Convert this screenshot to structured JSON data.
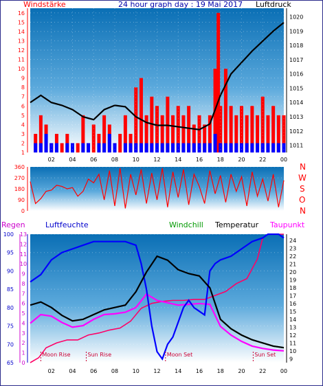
{
  "header": {
    "left_label": "Windstärke",
    "title": "24 hour graph day : 19 Mai 2017",
    "right_label": "Luftdruck"
  },
  "colors": {
    "background_top": "#0a6fb5",
    "background_bottom": "#ffffff",
    "wind_bar": "#ff0000",
    "gust_bar": "#0000ff",
    "pressure_line": "#000000",
    "direction_line": "#ff0000",
    "temperature_line": "#000000",
    "humidity_line": "#0000ff",
    "dewpoint_line": "#ff00ff",
    "rain_line": "#ff0066",
    "windchill_line": "#009900"
  },
  "bottom_legend": {
    "rain": "Regen",
    "humidity": "Luftfeuchte",
    "windchill": "Windchill",
    "temperature": "Temperatur",
    "dewpoint": "Taupunkt"
  },
  "direction_letters": [
    "N",
    "W",
    "S",
    "O",
    "N"
  ],
  "x_ticks": [
    "02",
    "04",
    "06",
    "08",
    "10",
    "12",
    "14",
    "16",
    "18",
    "20",
    "22",
    "00"
  ],
  "chart_data": [
    {
      "type": "bar",
      "name": "wind_and_pressure",
      "left_axis_ticks": [
        1,
        2,
        3,
        4,
        5,
        6,
        7,
        8,
        9,
        10,
        11,
        12,
        13,
        14,
        15,
        16
      ],
      "right_axis_ticks": [
        1011,
        1012,
        1013,
        1014,
        1015,
        1016,
        1017,
        1018,
        1019,
        1020
      ],
      "ylim_left": [
        1,
        16.5
      ],
      "ylim_right": [
        1010.5,
        1020.6
      ],
      "x_range": [
        0,
        24
      ],
      "series": [
        {
          "name": "Windstärke",
          "x": [
            0.5,
            1.0,
            1.5,
            2.0,
            2.5,
            3.0,
            3.5,
            4.0,
            4.5,
            5.0,
            5.5,
            6.0,
            6.5,
            7.0,
            7.5,
            8.0,
            8.5,
            9.0,
            9.5,
            10.0,
            10.5,
            11.0,
            11.5,
            12.0,
            12.5,
            13.0,
            13.5,
            14.0,
            14.5,
            15.0,
            15.5,
            16.0,
            16.5,
            17.0,
            17.5,
            17.8,
            18.0,
            18.5,
            19.0,
            19.5,
            20.0,
            20.5,
            21.0,
            21.5,
            22.0,
            22.5,
            23.0,
            23.5,
            24.0
          ],
          "values": [
            3,
            5,
            4,
            2,
            3,
            2,
            3,
            2,
            2,
            5,
            2,
            4,
            3,
            5,
            4,
            2,
            3,
            5,
            3,
            8,
            9,
            5,
            7,
            6,
            5,
            7,
            5,
            6,
            5,
            6,
            4,
            5,
            4,
            5,
            10,
            16,
            6,
            10,
            6,
            5,
            6,
            5,
            6,
            5,
            7,
            5,
            6,
            5,
            5
          ]
        },
        {
          "name": "Böen",
          "x": [
            0.5,
            1.0,
            1.5,
            2.0,
            2.5,
            3.0,
            3.5,
            4.0,
            4.5,
            5.0,
            5.5,
            6.0,
            6.5,
            7.0,
            7.5,
            8.0,
            8.5,
            9.0,
            9.5,
            10.0,
            10.5,
            11.0,
            11.5,
            12.0,
            12.5,
            13.0,
            13.5,
            14.0,
            14.5,
            15.0,
            15.5,
            16.0,
            16.5,
            17.0,
            17.5,
            18.0,
            18.5,
            19.0,
            19.5,
            20.0,
            20.5,
            21.0,
            21.5,
            22.0,
            22.5,
            23.0,
            23.5,
            24.0
          ],
          "values": [
            2,
            2,
            3,
            2,
            2,
            1,
            2,
            2,
            1,
            2,
            2,
            1,
            2,
            2,
            3,
            2,
            1,
            2,
            2,
            2,
            2,
            2,
            2,
            2,
            2,
            2,
            2,
            2,
            2,
            2,
            2,
            2,
            2,
            2,
            3,
            2,
            2,
            2,
            2,
            2,
            2,
            2,
            2,
            2,
            2,
            2,
            2,
            2
          ]
        },
        {
          "name": "Luftdruck",
          "x": [
            0,
            1,
            2,
            3,
            4,
            5,
            6,
            7,
            8,
            9,
            10,
            11,
            12,
            13,
            14,
            15,
            16,
            17,
            18,
            19,
            20,
            21,
            22,
            23,
            24
          ],
          "values": [
            1014.0,
            1014.5,
            1014.0,
            1013.8,
            1013.5,
            1013.0,
            1012.8,
            1013.5,
            1013.8,
            1013.7,
            1013.0,
            1012.6,
            1012.4,
            1012.4,
            1012.3,
            1012.2,
            1012.1,
            1012.5,
            1014.5,
            1016.0,
            1016.8,
            1017.6,
            1018.3,
            1019.0,
            1019.6
          ]
        }
      ]
    },
    {
      "type": "line",
      "name": "wind_direction",
      "left_axis_ticks": [
        0,
        90,
        180,
        270,
        360
      ],
      "ylim": [
        0,
        360
      ],
      "x_range": [
        0,
        24
      ],
      "series": [
        {
          "name": "Windrichtung",
          "x": [
            0,
            0.5,
            1,
            1.5,
            2,
            2.5,
            3,
            3.5,
            4,
            4.5,
            5,
            5.5,
            6,
            6.5,
            7,
            7.5,
            8,
            8.5,
            9,
            9.5,
            10,
            10.5,
            11,
            11.5,
            12,
            12.5,
            13,
            13.5,
            14,
            14.5,
            15,
            15.5,
            16,
            16.5,
            17,
            17.5,
            18,
            18.5,
            19,
            19.5,
            20,
            20.5,
            21,
            21.5,
            22,
            22.5,
            23,
            23.5,
            24
          ],
          "values": [
            240,
            60,
            100,
            160,
            170,
            210,
            200,
            180,
            190,
            120,
            160,
            260,
            230,
            300,
            90,
            330,
            40,
            350,
            20,
            300,
            130,
            340,
            60,
            310,
            90,
            350,
            30,
            320,
            110,
            340,
            50,
            300,
            200,
            60,
            330,
            140,
            290,
            70,
            300,
            160,
            280,
            40,
            320,
            120,
            260,
            80,
            300,
            30,
            250
          ]
        }
      ]
    },
    {
      "type": "line",
      "name": "temperature_humidity_rain",
      "rain_axis_ticks": [
        0,
        1,
        2,
        3,
        4,
        5,
        6,
        7,
        8,
        9,
        10,
        11,
        12,
        13
      ],
      "humidity_axis_ticks": [
        65,
        70,
        75,
        80,
        85,
        90,
        95,
        100
      ],
      "temperature_axis_ticks": [
        9,
        10,
        11,
        12,
        13,
        14,
        15,
        16,
        17,
        18,
        19,
        20,
        21,
        22,
        23,
        24
      ],
      "ylim_rain": [
        0,
        13
      ],
      "ylim_humidity": [
        65,
        100
      ],
      "ylim_temperature": [
        8.5,
        24.8
      ],
      "x_range": [
        0,
        24
      ],
      "annotations": [
        {
          "text": "Moon Rise",
          "x": 1.0
        },
        {
          "text": "Sun Rise",
          "x": 5.3
        },
        {
          "text": "Moon Set",
          "x": 12.8
        },
        {
          "text": "Sun Set",
          "x": 21.1
        }
      ],
      "series": [
        {
          "name": "Temperatur",
          "x": [
            0,
            1,
            2,
            3,
            4,
            5,
            6,
            7,
            8,
            9,
            10,
            11,
            12,
            13,
            14,
            15,
            16,
            17,
            18,
            19,
            20,
            21,
            22,
            23,
            24
          ],
          "values": [
            15.8,
            16.2,
            15.5,
            14.5,
            13.8,
            14.0,
            14.6,
            15.2,
            15.5,
            15.8,
            17.5,
            20.0,
            22.0,
            21.5,
            20.3,
            19.8,
            19.5,
            18.0,
            14.0,
            12.8,
            12.0,
            11.4,
            11.0,
            10.6,
            10.4
          ]
        },
        {
          "name": "Luftfeuchte",
          "x": [
            0,
            1,
            2,
            3,
            4,
            5,
            6,
            7,
            8,
            9,
            10,
            10.5,
            11,
            11.5,
            12,
            12.5,
            13,
            13.5,
            14,
            14.5,
            15,
            15.5,
            16,
            16.5,
            17,
            17.5,
            18,
            19,
            20,
            21,
            22,
            22.5,
            23,
            23.5,
            24
          ],
          "values": [
            87,
            89,
            93,
            95,
            96,
            97,
            98,
            98,
            98,
            98,
            97,
            92,
            85,
            75,
            68,
            66,
            70,
            72,
            76,
            80,
            82,
            80,
            79,
            78,
            90,
            92,
            93,
            94,
            96,
            98,
            99,
            100,
            100,
            100,
            99
          ]
        },
        {
          "name": "Taupunkt",
          "x": [
            0,
            1,
            2,
            3,
            4,
            5,
            6,
            7,
            8,
            9,
            10,
            11,
            12,
            13,
            14,
            15,
            16,
            17,
            18,
            19,
            20,
            21,
            22,
            23,
            24
          ],
          "values": [
            13.5,
            14.6,
            14.4,
            13.6,
            13.0,
            13.2,
            14.0,
            14.6,
            14.7,
            14.9,
            15.5,
            17.2,
            16.4,
            16.1,
            15.8,
            15.9,
            16.0,
            15.9,
            13.1,
            12.0,
            11.2,
            10.6,
            10.3,
            10.1,
            10.0
          ]
        },
        {
          "name": "Regen",
          "x": [
            0,
            0.8,
            1.5,
            2.5,
            3.5,
            4.5,
            5.5,
            6.5,
            7.5,
            8.5,
            9.5,
            10.5,
            11.5,
            12.5,
            13.5,
            14.5,
            15.5,
            16.5,
            17.5,
            18.5,
            19.5,
            20.5,
            21.5,
            22,
            22.5,
            23,
            23.5,
            24
          ],
          "values": [
            0,
            0.5,
            1.5,
            2.0,
            2.3,
            2.3,
            2.8,
            3.0,
            3.3,
            3.5,
            4.2,
            5.5,
            6.0,
            6.2,
            6.3,
            6.3,
            6.4,
            6.4,
            6.8,
            7.2,
            8.0,
            8.5,
            10.5,
            12.6,
            13.0,
            13.0,
            13.0,
            13.0
          ]
        },
        {
          "name": "Windchill",
          "x": [
            18,
            19,
            20,
            21,
            22,
            23,
            24
          ],
          "values": [
            14.0,
            12.8,
            12.0,
            11.4,
            11.0,
            10.6,
            10.4
          ]
        }
      ]
    }
  ]
}
